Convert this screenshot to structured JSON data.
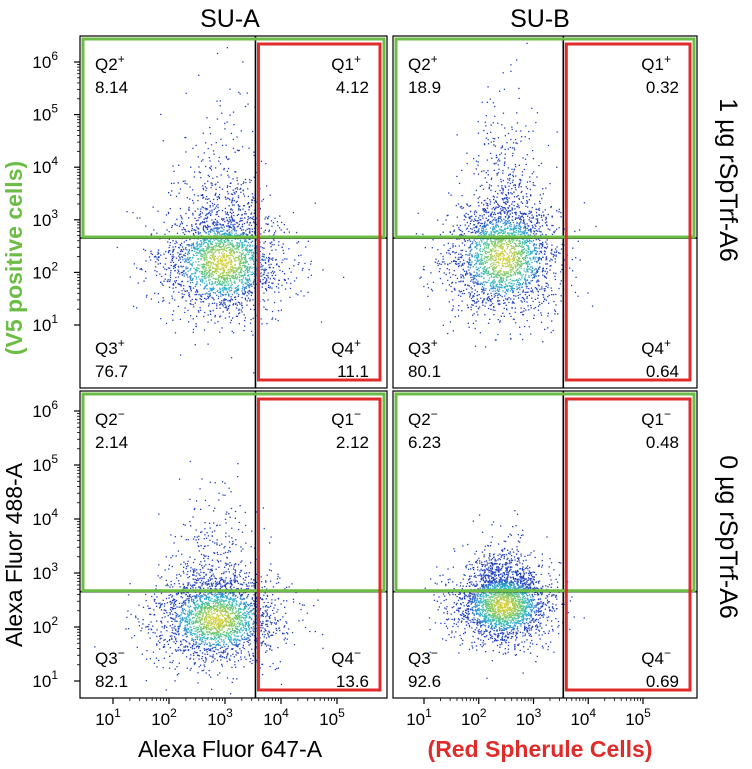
{
  "figure": {
    "col_titles": [
      "SU-A",
      "SU-B"
    ],
    "row_titles": [
      "1 µg rSpTrf-A6",
      "0 µg rSpTrf-A6"
    ],
    "xlabel": "Alexa Fluor 647-A",
    "xlabel_note": "(Red Spherule Cells)",
    "ylabel": "Alexa Fluor 488-A",
    "ylabel_note": "(V5 positive cells)",
    "x_ticks": [
      "10",
      "10",
      "10",
      "10",
      "10"
    ],
    "x_tick_exps": [
      "1",
      "2",
      "3",
      "4",
      "5"
    ],
    "y_ticks": [
      "10",
      "10",
      "10",
      "10",
      "10",
      "10"
    ],
    "y_tick_exps": [
      "1",
      "2",
      "3",
      "4",
      "5",
      "6"
    ],
    "colors": {
      "green_gate": "#6cbd45",
      "red_gate": "#e02b2b",
      "note_green": "#6cbd45",
      "note_red": "#e02b2b",
      "density_low": "#1f3fbf",
      "density_mid": "#2fb8c8",
      "density_high": "#f2d22e"
    }
  },
  "chart_data": [
    {
      "type": "scatter",
      "panel": "SU-A / 1 µg rSpTrf-A6",
      "x_scale": "log",
      "y_scale": "log",
      "xlim": [
        3,
        600000
      ],
      "ylim": [
        3,
        2000000
      ],
      "x_gate": 3500,
      "y_gate": 450,
      "quadrants": {
        "Q1": {
          "name": "Q1",
          "sup": "+",
          "value": "4.12"
        },
        "Q2": {
          "name": "Q2",
          "sup": "+",
          "value": "8.14"
        },
        "Q3": {
          "name": "Q3",
          "sup": "+",
          "value": "76.7"
        },
        "Q4": {
          "name": "Q4",
          "sup": "+",
          "value": "11.1"
        }
      },
      "population": {
        "center_x_log": 2.95,
        "center_y_log": 2.2,
        "spread_x": 0.55,
        "spread_y": 0.5,
        "tail_y_log": 3.6
      }
    },
    {
      "type": "scatter",
      "panel": "SU-B / 1 µg rSpTrf-A6",
      "x_scale": "log",
      "y_scale": "log",
      "xlim": [
        3,
        600000
      ],
      "ylim": [
        3,
        2000000
      ],
      "x_gate": 3500,
      "y_gate": 450,
      "quadrants": {
        "Q1": {
          "name": "Q1",
          "sup": "+",
          "value": "0.32"
        },
        "Q2": {
          "name": "Q2",
          "sup": "+",
          "value": "18.9"
        },
        "Q3": {
          "name": "Q3",
          "sup": "+",
          "value": "80.1"
        },
        "Q4": {
          "name": "Q4",
          "sup": "+",
          "value": "0.64"
        }
      },
      "population": {
        "center_x_log": 2.45,
        "center_y_log": 2.3,
        "spread_x": 0.5,
        "spread_y": 0.55,
        "tail_y_log": 3.8
      }
    },
    {
      "type": "scatter",
      "panel": "SU-A / 0 µg rSpTrf-A6",
      "x_scale": "log",
      "y_scale": "log",
      "xlim": [
        3,
        600000
      ],
      "ylim": [
        3,
        2000000
      ],
      "x_gate": 3500,
      "y_gate": 450,
      "quadrants": {
        "Q1": {
          "name": "Q1",
          "sup": "−",
          "value": "2.12"
        },
        "Q2": {
          "name": "Q2",
          "sup": "−",
          "value": "2.14"
        },
        "Q3": {
          "name": "Q3",
          "sup": "−",
          "value": "82.1"
        },
        "Q4": {
          "name": "Q4",
          "sup": "−",
          "value": "13.6"
        }
      },
      "population": {
        "center_x_log": 2.85,
        "center_y_log": 2.15,
        "spread_x": 0.55,
        "spread_y": 0.4,
        "tail_y_log": 3.2
      }
    },
    {
      "type": "scatter",
      "panel": "SU-B / 0 µg rSpTrf-A6",
      "x_scale": "log",
      "y_scale": "log",
      "xlim": [
        3,
        600000
      ],
      "ylim": [
        3,
        2000000
      ],
      "x_gate": 3500,
      "y_gate": 450,
      "quadrants": {
        "Q1": {
          "name": "Q1",
          "sup": "−",
          "value": "0.48"
        },
        "Q2": {
          "name": "Q2",
          "sup": "−",
          "value": "6.23"
        },
        "Q3": {
          "name": "Q3",
          "sup": "−",
          "value": "92.6"
        },
        "Q4": {
          "name": "Q4",
          "sup": "−",
          "value": "0.69"
        }
      },
      "population": {
        "center_x_log": 2.45,
        "center_y_log": 2.4,
        "spread_x": 0.45,
        "spread_y": 0.35,
        "tail_y_log": 3.0
      }
    }
  ]
}
